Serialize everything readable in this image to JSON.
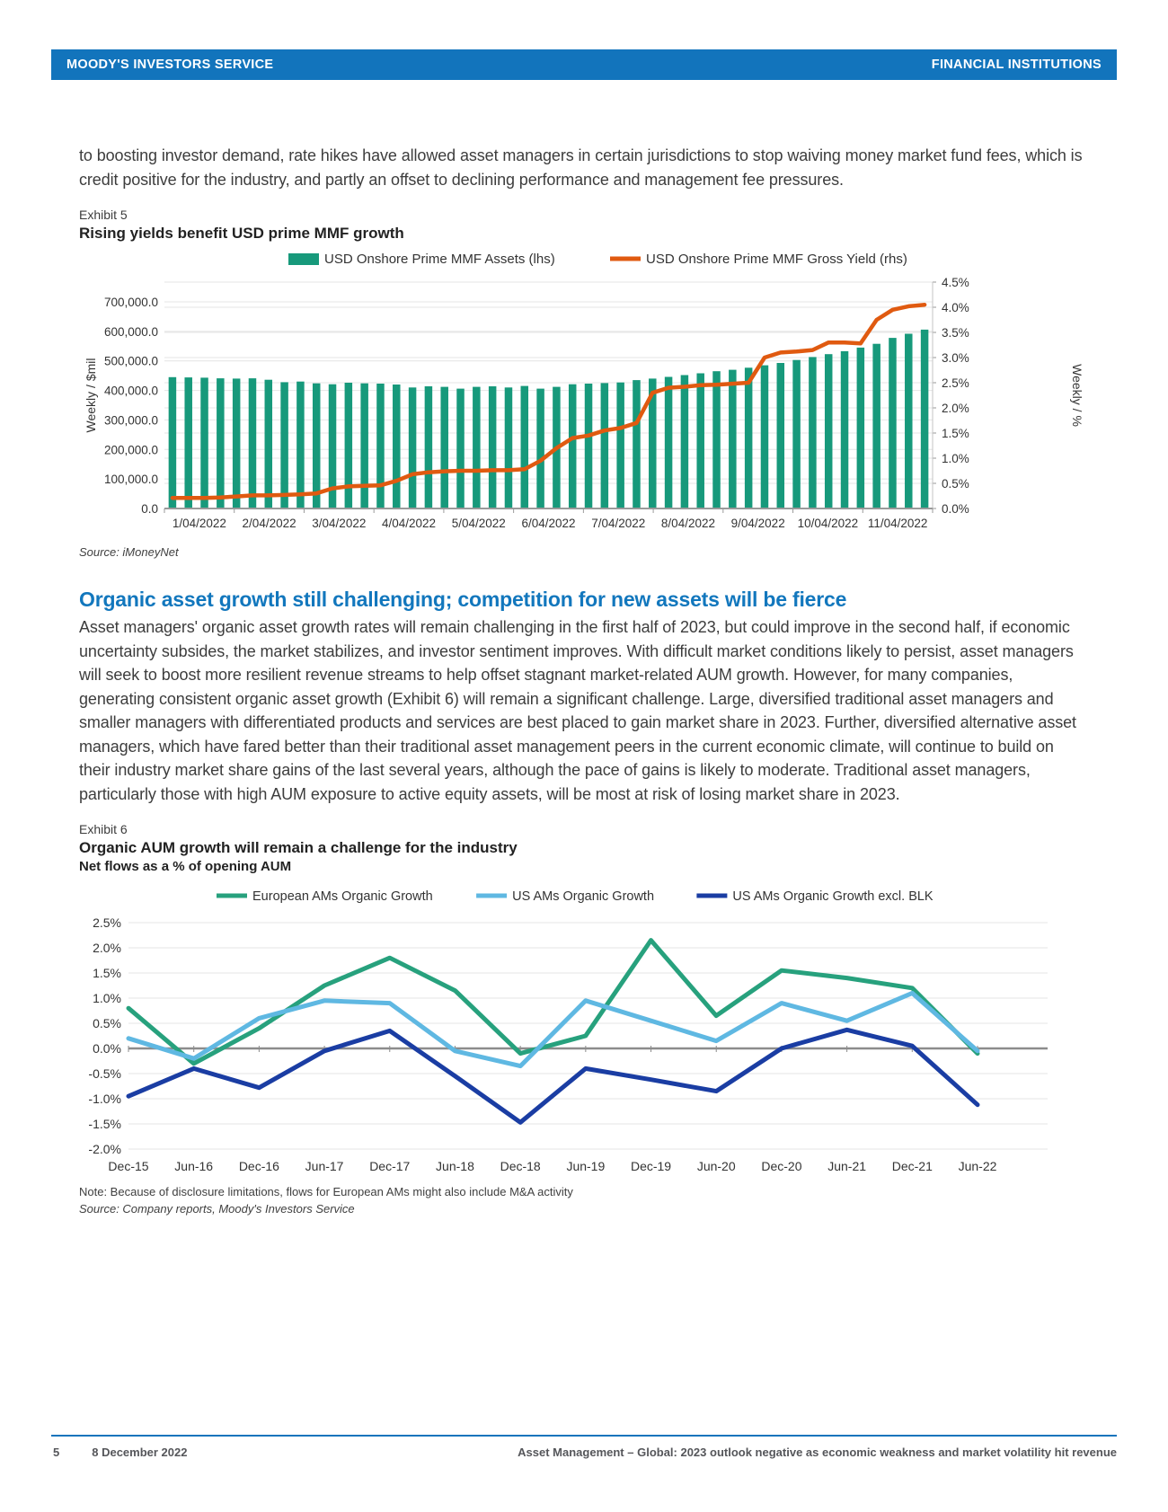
{
  "header": {
    "left": "MOODY'S INVESTORS SERVICE",
    "right": "FINANCIAL INSTITUTIONS"
  },
  "intro": "to boosting investor demand, rate hikes have allowed asset managers in certain jurisdictions to stop waiving money market fund fees, which is credit positive for the industry, and partly an offset to declining performance and management fee pressures.",
  "exhibit5": {
    "label": "Exhibit 5",
    "title": "Rising yields benefit USD prime MMF growth",
    "source": "Source: iMoneyNet"
  },
  "section": {
    "heading": "Organic asset growth still challenging; competition for new assets will be fierce",
    "body": "Asset managers' organic asset growth rates will remain challenging in the first half of 2023, but could improve in the second half, if economic uncertainty subsides, the market stabilizes, and investor sentiment improves. With difficult market conditions likely to persist, asset managers will seek to boost more resilient revenue streams to help offset stagnant market-related AUM growth. However, for many companies, generating consistent organic asset growth (Exhibit 6) will remain a significant challenge. Large, diversified traditional asset managers and smaller managers with differentiated products and services are best placed to gain market share in 2023. Further, diversified alternative asset managers, which have fared better than their traditional asset management peers in the current economic climate, will continue to build on their industry market share gains of the last several years, although the pace of gains is likely to moderate. Traditional asset managers, particularly those with high AUM exposure to active equity assets, will be most at risk of losing market share in 2023."
  },
  "exhibit6": {
    "label": "Exhibit 6",
    "title": "Organic AUM growth will remain a challenge for the industry",
    "subtitle": "Net flows as a % of opening AUM",
    "note": "Note: Because of disclosure limitations, flows for European AMs might also include M&A activity",
    "source": "Source: Company reports, Moody's Investors Service"
  },
  "footer": {
    "page": "5",
    "date": "8 December 2022",
    "right": "Asset Management – Global: 2023 outlook negative as economic weakness and market volatility hit revenue"
  },
  "chart_data": [
    {
      "type": "bar",
      "title": "Rising yields benefit USD prime MMF growth",
      "legend": [
        "USD Onshore Prime MMF Assets (lhs)",
        "USD Onshore Prime MMF Gross Yield (rhs)"
      ],
      "ylabel_left": "Weekly / $mil",
      "ylabel_right": "Weekly / %",
      "ylim_left": [
        0,
        700000
      ],
      "ytick_step_left": 100000,
      "ylim_right": [
        0,
        4.5
      ],
      "ytick_step_right": 0.5,
      "bar_color": "#17997b",
      "line_color": "#e05a10",
      "x_month_labels": [
        "1/04/2022",
        "2/04/2022",
        "3/04/2022",
        "4/04/2022",
        "5/04/2022",
        "6/04/2022",
        "7/04/2022",
        "8/04/2022",
        "9/04/2022",
        "10/04/2022",
        "11/04/2022"
      ],
      "series": [
        {
          "name": "USD Onshore Prime MMF Assets (lhs)",
          "axis": "left",
          "values": [
            445000,
            444000,
            443000,
            441000,
            440000,
            441000,
            436000,
            428000,
            430000,
            424000,
            421000,
            426000,
            424000,
            423000,
            420000,
            410000,
            414000,
            412000,
            406000,
            412000,
            414000,
            410000,
            415000,
            406000,
            412000,
            421000,
            423000,
            425000,
            427000,
            435000,
            440000,
            446000,
            452000,
            458000,
            465000,
            470000,
            477000,
            485000,
            493000,
            503000,
            513000,
            523000,
            533000,
            545000,
            558000,
            578000,
            592000,
            606000
          ]
        },
        {
          "name": "USD Onshore Prime MMF Gross Yield (rhs)",
          "axis": "right",
          "values": [
            0.21,
            0.21,
            0.21,
            0.22,
            0.24,
            0.26,
            0.26,
            0.27,
            0.28,
            0.3,
            0.4,
            0.44,
            0.45,
            0.46,
            0.55,
            0.68,
            0.72,
            0.74,
            0.75,
            0.75,
            0.76,
            0.76,
            0.78,
            0.95,
            1.2,
            1.4,
            1.45,
            1.55,
            1.6,
            1.7,
            2.3,
            2.4,
            2.42,
            2.45,
            2.46,
            2.48,
            2.5,
            3.0,
            3.1,
            3.12,
            3.15,
            3.3,
            3.3,
            3.28,
            3.75,
            3.95,
            4.02,
            4.05
          ]
        }
      ]
    },
    {
      "type": "line",
      "title": "Organic AUM growth will remain a challenge for the industry",
      "subtitle": "Net flows as a % of opening AUM",
      "categories": [
        "Dec-15",
        "Jun-16",
        "Dec-16",
        "Jun-17",
        "Dec-17",
        "Jun-18",
        "Dec-18",
        "Jun-19",
        "Dec-19",
        "Jun-20",
        "Dec-20",
        "Jun-21",
        "Dec-21",
        "Jun-22"
      ],
      "ylim": [
        -2.0,
        2.5
      ],
      "ytick_step": 0.5,
      "series": [
        {
          "name": "European AMs Organic Growth",
          "color": "#27a17d",
          "values": [
            0.8,
            -0.3,
            0.4,
            1.25,
            1.8,
            1.15,
            -0.1,
            0.25,
            2.15,
            0.65,
            1.55,
            1.4,
            1.2,
            -0.1
          ]
        },
        {
          "name": "US AMs Organic Growth",
          "color": "#5fb8e2",
          "values": [
            0.2,
            -0.2,
            0.6,
            0.95,
            0.9,
            -0.05,
            -0.35,
            0.95,
            0.55,
            0.15,
            0.9,
            0.55,
            1.1,
            -0.05
          ]
        },
        {
          "name": "US AMs Organic Growth excl. BLK",
          "color": "#1a3da3",
          "values": [
            -0.95,
            -0.4,
            -0.78,
            -0.05,
            0.35,
            -0.55,
            -1.47,
            -0.4,
            -0.62,
            -0.85,
            0.0,
            0.37,
            0.05,
            -1.12
          ]
        }
      ]
    }
  ]
}
